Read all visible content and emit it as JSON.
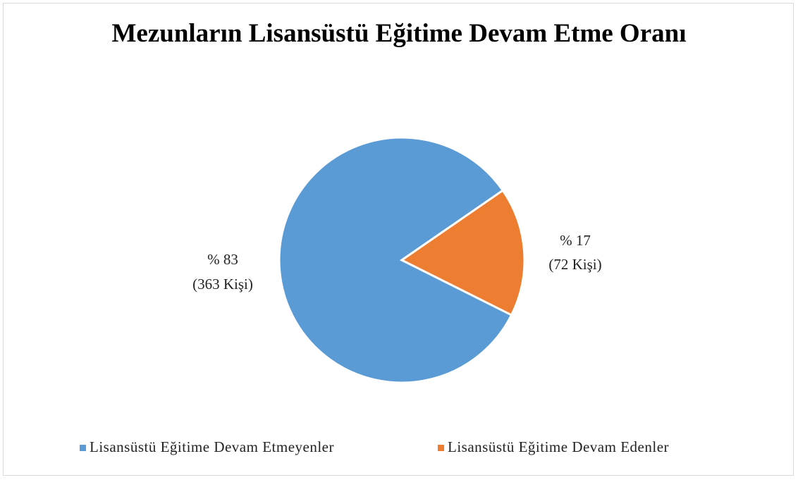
{
  "chart_data": {
    "type": "pie",
    "title": "Mezunların Lisansüstü Eğitime Devam Etme Oranı",
    "categories": [
      "Lisansüstü Eğitime Devam Etmeyenler",
      "Lisansüstü Eğitime Devam Edenler"
    ],
    "values": [
      83,
      17
    ],
    "value_labels": [
      "% 83",
      "% 17"
    ],
    "counts": [
      363,
      72
    ],
    "count_labels": [
      "(363 Kişi)",
      "(72 Kişi)"
    ],
    "colors": [
      "#5b9bd5",
      "#ed7d31"
    ],
    "legend": "bottom"
  }
}
